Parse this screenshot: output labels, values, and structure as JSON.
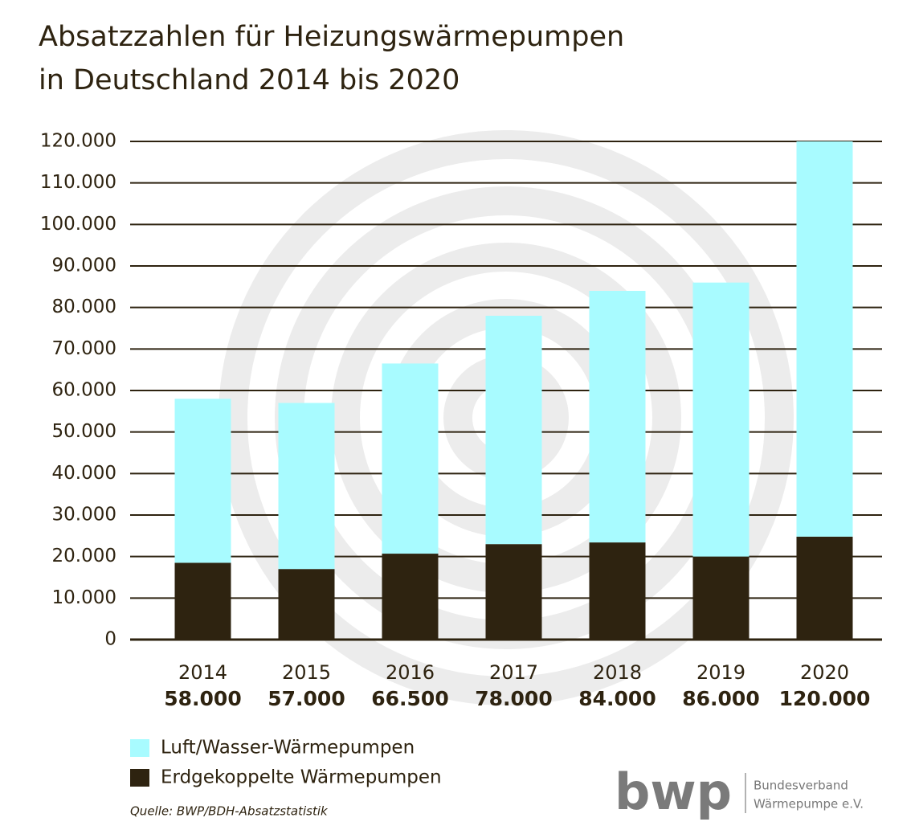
{
  "chart_data": {
    "type": "stacked-bar",
    "title": [
      "Absatzzahlen für Heizungswärmepumpen",
      "in Deutschland 2014 bis 2020"
    ],
    "categories": [
      "2014",
      "2015",
      "2016",
      "2017",
      "2018",
      "2019",
      "2020"
    ],
    "series": [
      {
        "name": "Erdgekoppelte Wärmepumpen",
        "color": "#2e2310",
        "values": [
          18500,
          17000,
          20700,
          23000,
          23400,
          20000,
          24800
        ]
      },
      {
        "name": "Luft/Wasser-Wärmepumpen",
        "color": "#a8fbff",
        "values": [
          39500,
          40000,
          45800,
          55000,
          60600,
          66000,
          95200
        ]
      }
    ],
    "totals": {
      "values": [
        58000,
        57000,
        66500,
        78000,
        84000,
        86000,
        120000
      ],
      "value_labels": [
        "58.000",
        "57.000",
        "66.500",
        "78.000",
        "84.000",
        "86.000",
        "120.000"
      ]
    },
    "ylim": [
      0,
      120000
    ],
    "yticks": [
      0,
      {
        "value": 10000,
        "label": "10.000"
      },
      {
        "value": 20000,
        "label": "20.000"
      },
      {
        "value": 30000,
        "label": "30.000"
      },
      {
        "value": 40000,
        "label": "40.000"
      },
      {
        "value": 50000,
        "label": "50.000"
      },
      {
        "value": 60000,
        "label": "60.000"
      },
      {
        "value": 70000,
        "label": "70.000"
      },
      {
        "value": 80000,
        "label": "80.000"
      },
      {
        "value": 90000,
        "label": "90.000"
      },
      {
        "value": 100000,
        "label": "100.000"
      },
      {
        "value": 110000,
        "label": "110.000"
      },
      {
        "value": 120000,
        "label": "120.000"
      }
    ],
    "grid": true,
    "source": "Quelle: BWP/BDH-Absatzstatistik"
  },
  "logo": {
    "mark": "bwp",
    "lines": [
      "Bundesverband",
      "Wärmepumpe e.V."
    ]
  }
}
